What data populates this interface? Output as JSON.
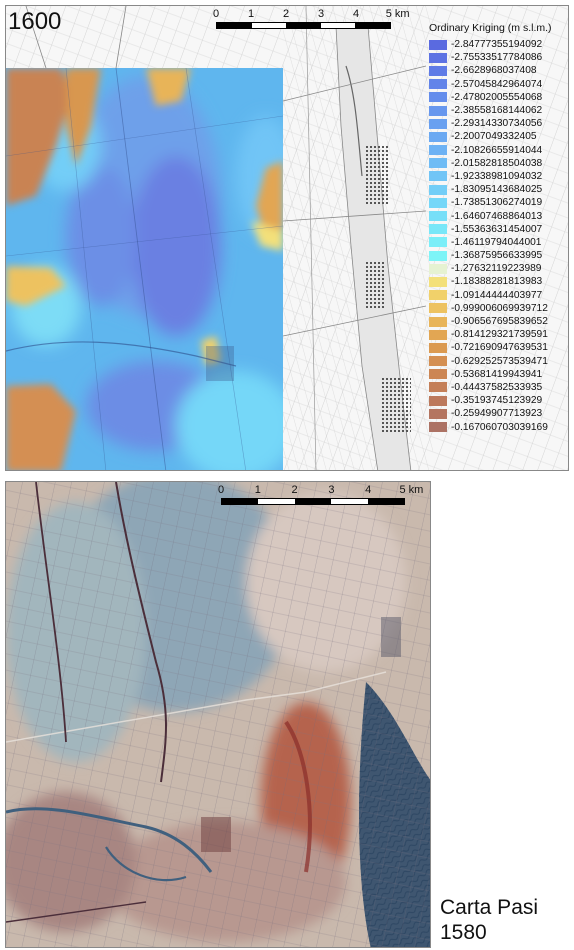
{
  "top_map": {
    "year": "1600",
    "scale": {
      "ticks": [
        "0",
        "1",
        "2",
        "3",
        "4"
      ],
      "unit": "5 km"
    },
    "legend": {
      "title": "Ordinary Kriging (m s.l.m.)",
      "items": [
        {
          "label": "-2.84777355194092",
          "color": "#5a6ae0"
        },
        {
          "label": "-2.75533517784086",
          "color": "#5d72e3"
        },
        {
          "label": "-2.6628968037408",
          "color": "#5f7be6"
        },
        {
          "label": "-2.57045842964074",
          "color": "#6284e9"
        },
        {
          "label": "-2.47802005554068",
          "color": "#648dec"
        },
        {
          "label": "-2.38558168144062",
          "color": "#6797ee"
        },
        {
          "label": "-2.29314330734056",
          "color": "#69a0f0"
        },
        {
          "label": "-2.2007049332405",
          "color": "#6ba9f2"
        },
        {
          "label": "-2.10826655914044",
          "color": "#6db2f4"
        },
        {
          "label": "-2.01582818504038",
          "color": "#6fbcf5"
        },
        {
          "label": "-1.92338981094032",
          "color": "#71c5f6"
        },
        {
          "label": "-1.83095143684025",
          "color": "#73cef7"
        },
        {
          "label": "-1.73851306274019",
          "color": "#75d7f8"
        },
        {
          "label": "-1.64607468864013",
          "color": "#77dff8"
        },
        {
          "label": "-1.55363631454007",
          "color": "#79e7f8"
        },
        {
          "label": "-1.46119794044001",
          "color": "#7beef8"
        },
        {
          "label": "-1.36875956633995",
          "color": "#7df4f7"
        },
        {
          "label": "-1.27632119223989",
          "color": "#e6f2d2"
        },
        {
          "label": "-1.18388281813983",
          "color": "#f3e07a"
        },
        {
          "label": "-1.09144444403977",
          "color": "#f1d16a"
        },
        {
          "label": "-0.999006069939712",
          "color": "#edc260"
        },
        {
          "label": "-0.906567695839652",
          "color": "#e8b458"
        },
        {
          "label": "-0.814129321739591",
          "color": "#e2a653"
        },
        {
          "label": "-0.721690947639531",
          "color": "#db9a51"
        },
        {
          "label": "-0.629252573539471",
          "color": "#d48f52"
        },
        {
          "label": "-0.53681419943941",
          "color": "#cc8654"
        },
        {
          "label": "-0.44437582533935",
          "color": "#c47f58"
        },
        {
          "label": "-0.35193745123929",
          "color": "#bc795c"
        },
        {
          "label": "-0.25949907713923",
          "color": "#b47560"
        },
        {
          "label": "-0.167060703039169",
          "color": "#ac7264"
        }
      ]
    }
  },
  "bottom_map": {
    "scale": {
      "ticks": [
        "0",
        "1",
        "2",
        "3",
        "4"
      ],
      "unit": "5 km"
    },
    "source_title": "Carta Pasi",
    "source_year": "1580"
  }
}
